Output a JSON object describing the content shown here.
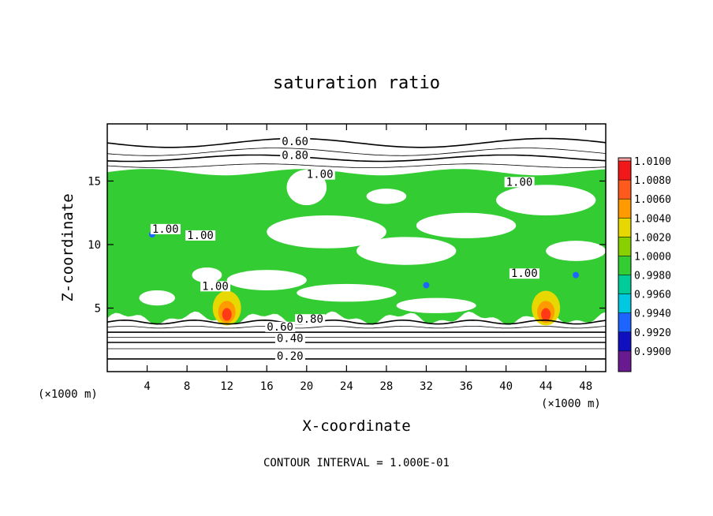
{
  "chart_data": {
    "type": "heatmap",
    "title": "saturation ratio",
    "xlabel": "X-coordinate",
    "ylabel": "Z-coordinate",
    "x_unit": "(×1000 m)",
    "z_unit": "(×1000 m)",
    "xlim": [
      0,
      50
    ],
    "ylim": [
      0,
      19.5
    ],
    "x_ticks": [
      4,
      8,
      12,
      16,
      20,
      24,
      28,
      32,
      36,
      40,
      44,
      48
    ],
    "y_ticks": [
      5,
      10,
      15
    ],
    "footer": "CONTOUR INTERVAL = 1.000E-01",
    "colorbar": {
      "levels": [
        "1.0100",
        "1.0080",
        "1.0060",
        "1.0040",
        "1.0020",
        "1.0000",
        "0.9980",
        "0.9960",
        "0.9940",
        "0.9920",
        "0.9900"
      ],
      "colors": [
        "#f7a0a0",
        "#f01818",
        "#ff5a1e",
        "#ff9a00",
        "#e6d800",
        "#88d000",
        "#33cc33",
        "#00cc99",
        "#00c8e0",
        "#1e64ff",
        "#1010c0",
        "#6a1a90"
      ]
    },
    "contour_labels": [
      {
        "text": "0.60",
        "x": 17.5,
        "y": 17.9
      },
      {
        "text": "0.80",
        "x": 17.5,
        "y": 16.8
      },
      {
        "text": "1.00",
        "x": 20.0,
        "y": 15.3
      },
      {
        "text": "1.00",
        "x": 40.0,
        "y": 14.7
      },
      {
        "text": "1.00",
        "x": 4.5,
        "y": 11.0
      },
      {
        "text": "1.00",
        "x": 8.0,
        "y": 10.5
      },
      {
        "text": "1.00",
        "x": 9.5,
        "y": 6.5
      },
      {
        "text": "1.00",
        "x": 40.5,
        "y": 7.5
      },
      {
        "text": "0.80",
        "x": 19.0,
        "y": 3.9
      },
      {
        "text": "0.60",
        "x": 16.0,
        "y": 3.3
      },
      {
        "text": "0.40",
        "x": 17.0,
        "y": 2.4
      },
      {
        "text": "0.20",
        "x": 17.0,
        "y": 1.0
      }
    ]
  }
}
